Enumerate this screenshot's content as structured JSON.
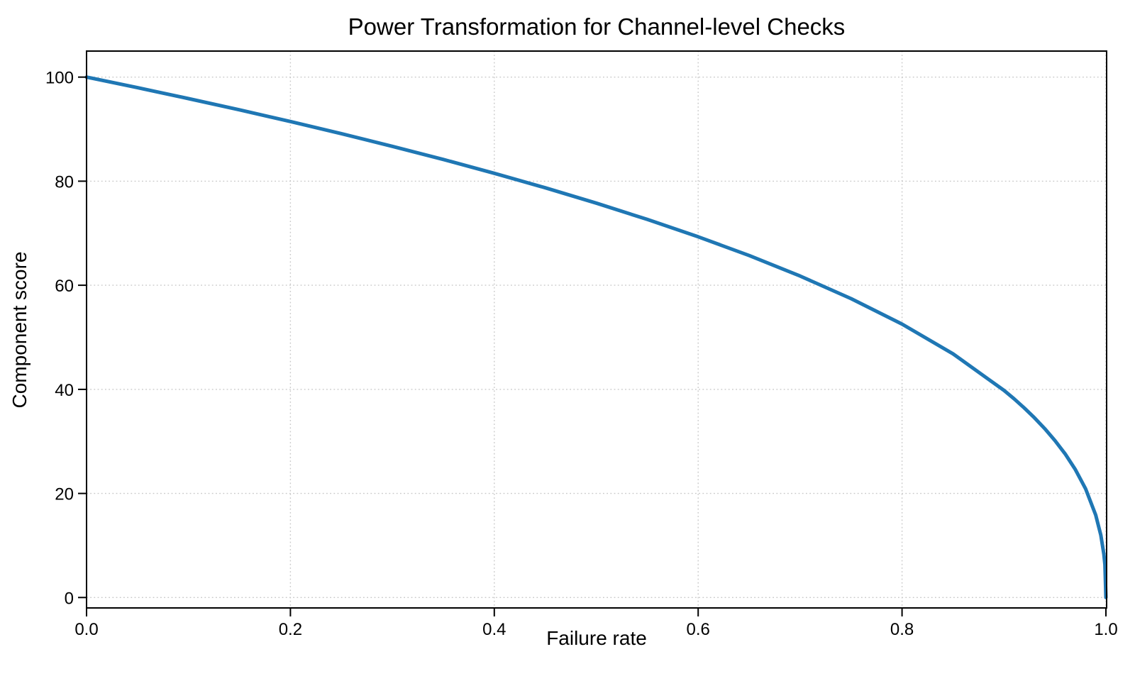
{
  "figure": {
    "title": "Power Transformation for Channel-level Checks",
    "xlabel": "Failure rate",
    "ylabel": "Component score"
  },
  "colors": {
    "line": "#1f77b4",
    "grid": "#c9c9c9",
    "axis": "#000000",
    "text": "#000000",
    "background": "#ffffff"
  },
  "chart_data": {
    "type": "line",
    "title": "Power Transformation for Channel-level Checks",
    "xlabel": "Failure rate",
    "ylabel": "Component score",
    "xlim": [
      0.0,
      1.0
    ],
    "ylim": [
      0,
      100
    ],
    "grid": true,
    "grid_style": "dotted",
    "legend": "none",
    "function": "score = 100 * (1 - failure_rate)^0.4",
    "power_exponent": 0.4,
    "x_ticks": {
      "values": [
        0.0,
        0.2,
        0.4,
        0.6,
        0.8,
        1.0
      ],
      "labels": [
        "0.0",
        "0.2",
        "0.4",
        "0.6",
        "0.8",
        "1.0"
      ]
    },
    "y_ticks": {
      "values": [
        0,
        20,
        40,
        60,
        80,
        100
      ],
      "labels": [
        "0",
        "20",
        "40",
        "60",
        "80",
        "100"
      ]
    },
    "series": [
      {
        "name": "component_score",
        "color": "#1f77b4",
        "x": [
          0,
          0.05,
          0.1,
          0.15,
          0.2,
          0.25,
          0.3,
          0.35,
          0.4,
          0.45,
          0.5,
          0.55,
          0.6,
          0.65,
          0.7,
          0.75,
          0.8,
          0.85,
          0.9,
          0.91,
          0.92,
          0.93,
          0.94,
          0.95,
          0.96,
          0.97,
          0.98,
          0.99,
          0.995,
          0.998,
          0.999,
          1.0
        ],
        "y": [
          100,
          97.97,
          95.87,
          93.71,
          91.46,
          89.13,
          86.7,
          84.17,
          81.52,
          78.73,
          75.79,
          72.66,
          69.31,
          65.71,
          61.78,
          57.43,
          52.53,
          46.82,
          39.81,
          38.17,
          36.41,
          34.52,
          32.45,
          30.17,
          27.6,
          24.6,
          20.91,
          15.85,
          12.01,
          8.33,
          6.31,
          0
        ]
      }
    ]
  }
}
